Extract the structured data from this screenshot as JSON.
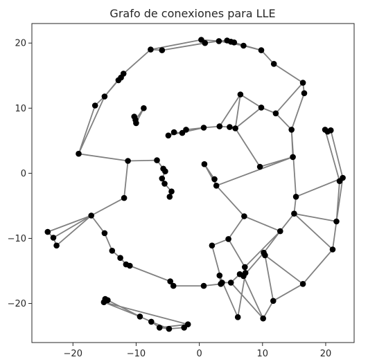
{
  "chart_data": {
    "type": "scatter",
    "title": "Grafo de conexiones para LLE",
    "xlabel": "",
    "ylabel": "",
    "xlim": [
      -26.5,
      24.5
    ],
    "ylim": [
      -26,
      23
    ],
    "xticks": [
      -20,
      -10,
      0,
      10,
      20
    ],
    "yticks": [
      -20,
      -10,
      0,
      10,
      20
    ],
    "xtick_labels": [
      "−20",
      "−10",
      "0",
      "10",
      "20"
    ],
    "ytick_labels": [
      "−20",
      "−10",
      "0",
      "10",
      "20"
    ],
    "grid": false,
    "edge_color": "#808080",
    "node_color": "#000000",
    "frame_color": "#262626",
    "nodes": [
      {
        "x": 0.3,
        "y": 20.5
      },
      {
        "x": 0.9,
        "y": 20.0
      },
      {
        "x": 3.1,
        "y": 20.3
      },
      {
        "x": 4.4,
        "y": 20.4
      },
      {
        "x": 5.0,
        "y": 20.2
      },
      {
        "x": 5.5,
        "y": 20.1
      },
      {
        "x": 7.0,
        "y": 19.6
      },
      {
        "x": 9.8,
        "y": 18.9
      },
      {
        "x": -7.7,
        "y": 19.0
      },
      {
        "x": -5.9,
        "y": 18.9
      },
      {
        "x": 11.8,
        "y": 16.8
      },
      {
        "x": 16.4,
        "y": 13.9
      },
      {
        "x": 16.6,
        "y": 12.3
      },
      {
        "x": -12.0,
        "y": 15.3
      },
      {
        "x": -12.4,
        "y": 14.7
      },
      {
        "x": -12.8,
        "y": 14.3
      },
      {
        "x": -15.0,
        "y": 11.8
      },
      {
        "x": -16.5,
        "y": 10.4
      },
      {
        "x": 6.5,
        "y": 12.1
      },
      {
        "x": 9.8,
        "y": 10.1
      },
      {
        "x": 12.1,
        "y": 9.2
      },
      {
        "x": -8.8,
        "y": 10.0
      },
      {
        "x": -10.3,
        "y": 8.7
      },
      {
        "x": -10.0,
        "y": 7.7
      },
      {
        "x": -10.1,
        "y": 8.2
      },
      {
        "x": 14.6,
        "y": 6.7
      },
      {
        "x": 19.9,
        "y": 6.7
      },
      {
        "x": 20.8,
        "y": 6.6
      },
      {
        "x": 20.3,
        "y": 6.4
      },
      {
        "x": 3.2,
        "y": 7.2
      },
      {
        "x": 4.8,
        "y": 7.1
      },
      {
        "x": 5.7,
        "y": 6.9
      },
      {
        "x": 0.7,
        "y": 7.0
      },
      {
        "x": -2.1,
        "y": 6.7
      },
      {
        "x": -2.7,
        "y": 6.2
      },
      {
        "x": -4.0,
        "y": 6.3
      },
      {
        "x": -4.9,
        "y": 5.8
      },
      {
        "x": -19.1,
        "y": 3.0
      },
      {
        "x": 14.8,
        "y": 2.5
      },
      {
        "x": -11.3,
        "y": 1.9
      },
      {
        "x": -6.7,
        "y": 2.0
      },
      {
        "x": 0.8,
        "y": 1.4
      },
      {
        "x": 9.6,
        "y": 1.0
      },
      {
        "x": -5.7,
        "y": 0.7
      },
      {
        "x": -5.4,
        "y": 0.3
      },
      {
        "x": -5.9,
        "y": -0.8
      },
      {
        "x": 2.4,
        "y": -0.9
      },
      {
        "x": 2.7,
        "y": -1.9
      },
      {
        "x": 22.7,
        "y": -0.7
      },
      {
        "x": 22.2,
        "y": -1.2
      },
      {
        "x": -5.5,
        "y": -1.6
      },
      {
        "x": -4.4,
        "y": -2.8
      },
      {
        "x": -4.7,
        "y": -3.6
      },
      {
        "x": 15.3,
        "y": -3.6
      },
      {
        "x": -11.9,
        "y": -3.8
      },
      {
        "x": 15.0,
        "y": -6.2
      },
      {
        "x": -17.1,
        "y": -6.5
      },
      {
        "x": 7.1,
        "y": -6.6
      },
      {
        "x": 21.7,
        "y": -7.4
      },
      {
        "x": -24.0,
        "y": -9.0
      },
      {
        "x": -15.0,
        "y": -9.2
      },
      {
        "x": 12.8,
        "y": -8.9
      },
      {
        "x": -23.1,
        "y": -9.9
      },
      {
        "x": -22.6,
        "y": -11.1
      },
      {
        "x": 4.6,
        "y": -10.1
      },
      {
        "x": 2.0,
        "y": -11.1
      },
      {
        "x": 21.1,
        "y": -11.7
      },
      {
        "x": -13.8,
        "y": -11.9
      },
      {
        "x": 10.2,
        "y": -12.2
      },
      {
        "x": 10.4,
        "y": -12.6
      },
      {
        "x": -12.5,
        "y": -13.0
      },
      {
        "x": -11.6,
        "y": -14.0
      },
      {
        "x": -11.0,
        "y": -14.2
      },
      {
        "x": 7.2,
        "y": -14.4
      },
      {
        "x": 7.3,
        "y": -15.3
      },
      {
        "x": 7.0,
        "y": -15.8
      },
      {
        "x": 6.4,
        "y": -15.5
      },
      {
        "x": 3.2,
        "y": -15.7
      },
      {
        "x": 3.6,
        "y": -16.8
      },
      {
        "x": 3.4,
        "y": -17.0
      },
      {
        "x": -4.6,
        "y": -16.6
      },
      {
        "x": 5.0,
        "y": -16.8
      },
      {
        "x": 16.4,
        "y": -17.0
      },
      {
        "x": -4.1,
        "y": -17.3
      },
      {
        "x": 0.7,
        "y": -17.3
      },
      {
        "x": 11.7,
        "y": -19.6
      },
      {
        "x": -14.9,
        "y": -19.3
      },
      {
        "x": -15.1,
        "y": -19.8
      },
      {
        "x": -14.5,
        "y": -19.5
      },
      {
        "x": -9.4,
        "y": -22.0
      },
      {
        "x": 6.1,
        "y": -22.1
      },
      {
        "x": 10.1,
        "y": -22.3
      },
      {
        "x": -7.6,
        "y": -22.8
      },
      {
        "x": -1.8,
        "y": -23.2
      },
      {
        "x": -6.3,
        "y": -23.7
      },
      {
        "x": -2.4,
        "y": -23.7
      },
      {
        "x": -4.8,
        "y": -23.9
      }
    ],
    "edges": [
      [
        0,
        1
      ],
      [
        0,
        2
      ],
      [
        1,
        2
      ],
      [
        2,
        3
      ],
      [
        3,
        4
      ],
      [
        4,
        5
      ],
      [
        5,
        6
      ],
      [
        6,
        7
      ],
      [
        2,
        6
      ],
      [
        4,
        7
      ],
      [
        0,
        8
      ],
      [
        1,
        9
      ],
      [
        8,
        9
      ],
      [
        7,
        10
      ],
      [
        10,
        11
      ],
      [
        11,
        12
      ],
      [
        8,
        13
      ],
      [
        13,
        14
      ],
      [
        14,
        15
      ],
      [
        13,
        16
      ],
      [
        15,
        16
      ],
      [
        16,
        17
      ],
      [
        16,
        37
      ],
      [
        17,
        37
      ],
      [
        37,
        39
      ],
      [
        18,
        19
      ],
      [
        18,
        29
      ],
      [
        18,
        31
      ],
      [
        19,
        20
      ],
      [
        20,
        11
      ],
      [
        20,
        25
      ],
      [
        12,
        25
      ],
      [
        19,
        31
      ],
      [
        22,
        23
      ],
      [
        22,
        24
      ],
      [
        21,
        24
      ],
      [
        21,
        23
      ],
      [
        29,
        32
      ],
      [
        29,
        30
      ],
      [
        30,
        31
      ],
      [
        32,
        33
      ],
      [
        33,
        34
      ],
      [
        34,
        35
      ],
      [
        35,
        36
      ],
      [
        32,
        36
      ],
      [
        31,
        42
      ],
      [
        25,
        38
      ],
      [
        26,
        28
      ],
      [
        27,
        28
      ],
      [
        26,
        49
      ],
      [
        27,
        48
      ],
      [
        48,
        49
      ],
      [
        49,
        58
      ],
      [
        48,
        58
      ],
      [
        38,
        42
      ],
      [
        38,
        47
      ],
      [
        39,
        40
      ],
      [
        39,
        54
      ],
      [
        40,
        43
      ],
      [
        43,
        44
      ],
      [
        44,
        45
      ],
      [
        45,
        50
      ],
      [
        50,
        51
      ],
      [
        51,
        52
      ],
      [
        41,
        46
      ],
      [
        46,
        47
      ],
      [
        41,
        47
      ],
      [
        47,
        57
      ],
      [
        25,
        53
      ],
      [
        53,
        55
      ],
      [
        53,
        48
      ],
      [
        55,
        58
      ],
      [
        55,
        61
      ],
      [
        55,
        66
      ],
      [
        66,
        58
      ],
      [
        61,
        57
      ],
      [
        61,
        68
      ],
      [
        61,
        73
      ],
      [
        54,
        56
      ],
      [
        56,
        59
      ],
      [
        56,
        62
      ],
      [
        56,
        63
      ],
      [
        59,
        62
      ],
      [
        62,
        63
      ],
      [
        56,
        60
      ],
      [
        60,
        67
      ],
      [
        67,
        70
      ],
      [
        70,
        71
      ],
      [
        71,
        72
      ],
      [
        72,
        80
      ],
      [
        80,
        83
      ],
      [
        83,
        84
      ],
      [
        84,
        79
      ],
      [
        79,
        77
      ],
      [
        77,
        78
      ],
      [
        78,
        81
      ],
      [
        81,
        76
      ],
      [
        76,
        74
      ],
      [
        74,
        73
      ],
      [
        73,
        64
      ],
      [
        64,
        65
      ],
      [
        65,
        78
      ],
      [
        64,
        57
      ],
      [
        68,
        69
      ],
      [
        69,
        82
      ],
      [
        82,
        66
      ],
      [
        82,
        85
      ],
      [
        85,
        69
      ],
      [
        68,
        75
      ],
      [
        75,
        74
      ],
      [
        75,
        91
      ],
      [
        74,
        90
      ],
      [
        90,
        77
      ],
      [
        91,
        85
      ],
      [
        91,
        81
      ],
      [
        86,
        87
      ],
      [
        86,
        88
      ],
      [
        87,
        89
      ],
      [
        88,
        89
      ],
      [
        89,
        92
      ],
      [
        92,
        94
      ],
      [
        92,
        96
      ],
      [
        94,
        96
      ],
      [
        94,
        93
      ],
      [
        93,
        95
      ],
      [
        96,
        95
      ],
      [
        87,
        93
      ]
    ]
  }
}
